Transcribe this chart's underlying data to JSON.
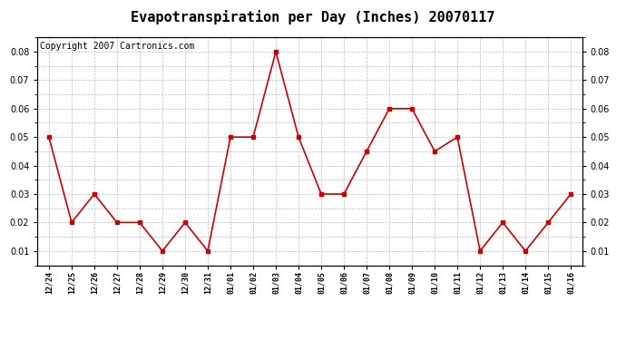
{
  "title": "Evapotranspiration per Day (Inches) 20070117",
  "copyright_text": "Copyright 2007 Cartronics.com",
  "x_labels": [
    "12/24",
    "12/25",
    "12/26",
    "12/27",
    "12/28",
    "12/29",
    "12/30",
    "12/31",
    "01/01",
    "01/02",
    "01/03",
    "01/04",
    "01/05",
    "01/06",
    "01/07",
    "01/08",
    "01/09",
    "01/10",
    "01/11",
    "01/12",
    "01/13",
    "01/14",
    "01/15",
    "01/16"
  ],
  "y_values": [
    0.05,
    0.02,
    0.03,
    0.02,
    0.02,
    0.01,
    0.02,
    0.01,
    0.05,
    0.05,
    0.08,
    0.05,
    0.03,
    0.03,
    0.045,
    0.06,
    0.06,
    0.045,
    0.05,
    0.01,
    0.02,
    0.01,
    0.02,
    0.03
  ],
  "line_color": "#cc0000",
  "marker": "s",
  "marker_size": 3,
  "background_color": "#ffffff",
  "plot_bg_color": "#ffffff",
  "grid_color": "#bbbbbb",
  "ylim": [
    0.005,
    0.085
  ],
  "yticks_left": [
    0.01,
    0.02,
    0.03,
    0.04,
    0.05,
    0.06,
    0.07,
    0.08
  ],
  "yticks_right": [
    0.01,
    0.02,
    0.03,
    0.04,
    0.05,
    0.06,
    0.07,
    0.08
  ],
  "ytick_minor": [
    0.005,
    0.015,
    0.025,
    0.035,
    0.045,
    0.055,
    0.065,
    0.075,
    0.085
  ],
  "title_fontsize": 11,
  "copyright_fontsize": 7,
  "tick_fontsize": 7,
  "xtick_fontsize": 6
}
